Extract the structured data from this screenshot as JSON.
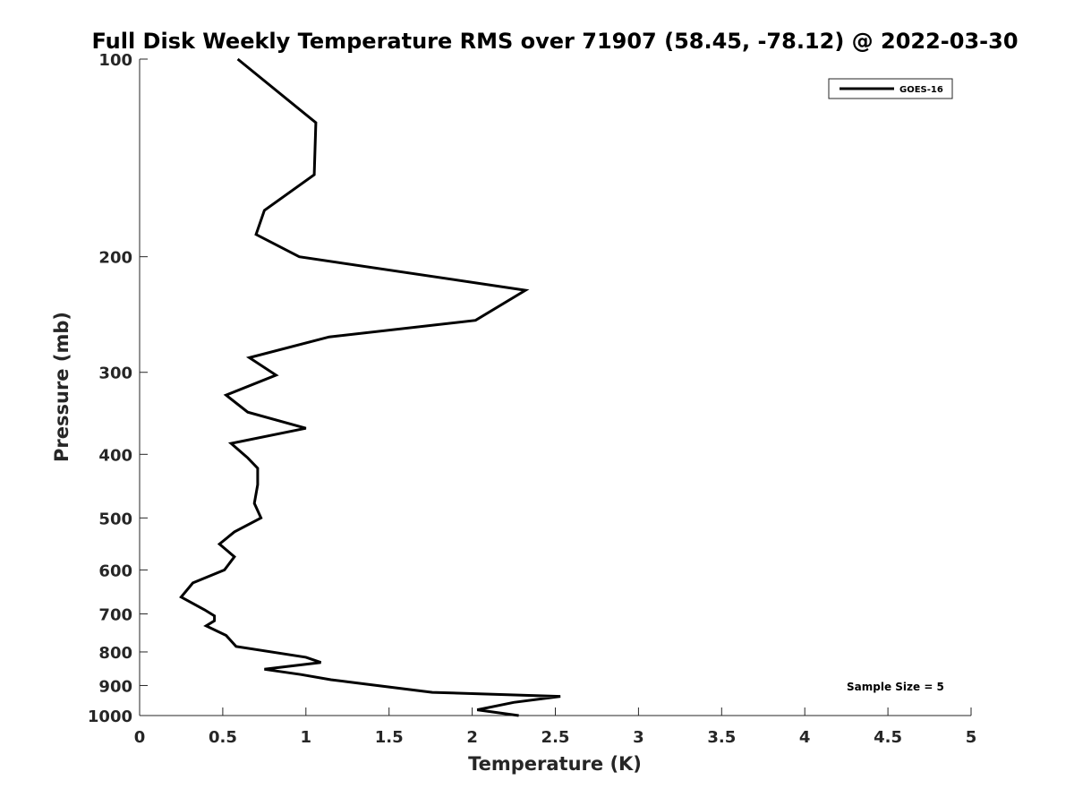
{
  "chart_data": {
    "type": "line",
    "title": "Full Disk Weekly Temperature RMS over 71907 (58.45, -78.12) @ 2022-03-30",
    "xlabel": "Temperature (K)",
    "ylabel": "Pressure (mb)",
    "xlim": [
      0,
      5
    ],
    "ylim": [
      100,
      1000
    ],
    "yscale": "log",
    "yreversed": true,
    "x_ticks": [
      0,
      0.5,
      1,
      1.5,
      2,
      2.5,
      3,
      3.5,
      4,
      4.5,
      5
    ],
    "x_tick_labels": [
      "0",
      "0.5",
      "1",
      "1.5",
      "2",
      "2.5",
      "3",
      "3.5",
      "4",
      "4.5",
      "5"
    ],
    "y_ticks": [
      100,
      200,
      300,
      400,
      500,
      600,
      700,
      800,
      900,
      1000
    ],
    "y_tick_labels": [
      "100",
      "200",
      "300",
      "400",
      "500",
      "600",
      "700",
      "800",
      "900",
      "1000"
    ],
    "grid": false,
    "legend_position": "top-right",
    "annotation": "Sample Size = 5",
    "series": [
      {
        "name": "GOES-16",
        "color": "#000000",
        "points": [
          [
            0.59,
            100
          ],
          [
            1.06,
            125
          ],
          [
            1.05,
            150
          ],
          [
            0.75,
            170
          ],
          [
            0.7,
            185
          ],
          [
            0.96,
            200
          ],
          [
            2.32,
            225
          ],
          [
            2.02,
            250
          ],
          [
            1.14,
            265
          ],
          [
            0.66,
            285
          ],
          [
            0.82,
            303
          ],
          [
            0.52,
            325
          ],
          [
            0.65,
            345
          ],
          [
            1.0,
            365
          ],
          [
            0.55,
            385
          ],
          [
            0.65,
            405
          ],
          [
            0.71,
            420
          ],
          [
            0.71,
            445
          ],
          [
            0.69,
            475
          ],
          [
            0.73,
            500
          ],
          [
            0.57,
            525
          ],
          [
            0.48,
            548
          ],
          [
            0.57,
            573
          ],
          [
            0.51,
            600
          ],
          [
            0.32,
            628
          ],
          [
            0.25,
            660
          ],
          [
            0.39,
            690
          ],
          [
            0.45,
            705
          ],
          [
            0.45,
            717
          ],
          [
            0.4,
            730
          ],
          [
            0.52,
            755
          ],
          [
            0.58,
            785
          ],
          [
            1.0,
            815
          ],
          [
            1.09,
            830
          ],
          [
            0.75,
            850
          ],
          [
            0.97,
            866
          ],
          [
            1.15,
            882
          ],
          [
            1.43,
            900
          ],
          [
            1.76,
            922
          ],
          [
            2.53,
            935
          ],
          [
            2.25,
            955
          ],
          [
            2.03,
            980
          ],
          [
            2.28,
            1000
          ]
        ]
      }
    ]
  }
}
